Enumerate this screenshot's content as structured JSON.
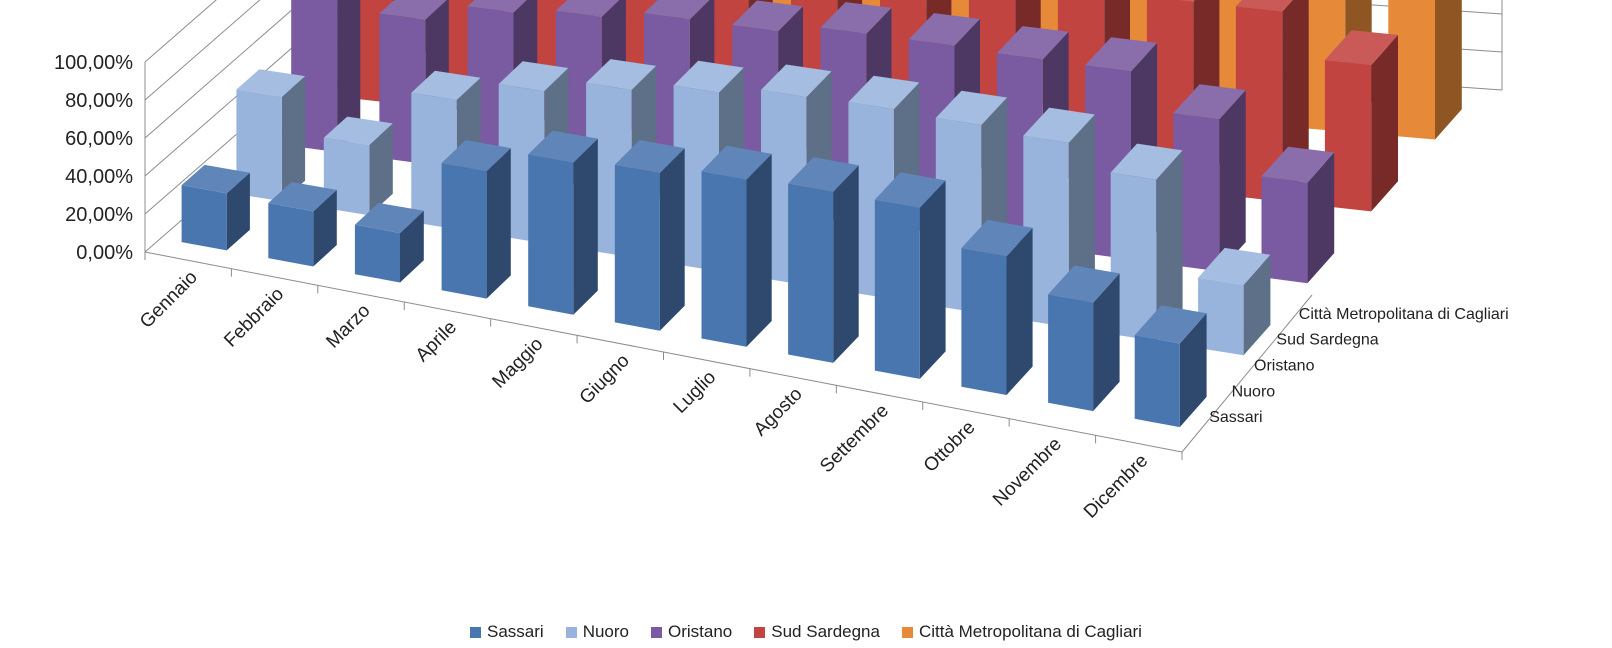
{
  "chart_data": {
    "type": "bar",
    "variant": "3d-column",
    "title": "",
    "categories": [
      "Gennaio",
      "Febbraio",
      "Marzo",
      "Aprile",
      "Maggio",
      "Giugno",
      "Luglio",
      "Agosto",
      "Settembre",
      "Ottobre",
      "Novembre",
      "Dicembre"
    ],
    "series": [
      {
        "name": "Sassari",
        "color": "#4a76b0",
        "values": [
          0.3,
          0.29,
          0.26,
          0.67,
          0.8,
          0.83,
          0.88,
          0.9,
          0.9,
          0.73,
          0.57,
          0.44
        ]
      },
      {
        "name": "Nuoro",
        "color": "#98b4dc",
        "values": [
          0.55,
          0.37,
          0.68,
          0.8,
          0.88,
          0.94,
          0.99,
          1.0,
          0.99,
          0.97,
          0.85,
          0.37
        ]
      },
      {
        "name": "Oristano",
        "color": "#7a5aa0",
        "values": [
          0.8,
          0.76,
          0.86,
          0.9,
          0.95,
          0.95,
          1.0,
          1.0,
          0.99,
          0.99,
          0.8,
          0.53
        ]
      },
      {
        "name": "Sud Sardegna",
        "color": "#c24440",
        "values": [
          0.92,
          0.9,
          0.88,
          0.98,
          0.99,
          0.99,
          0.99,
          0.99,
          0.99,
          1.0,
          1.0,
          0.77
        ]
      },
      {
        "name": "Città Metropolitana di Cagliari",
        "color": "#e68a3a",
        "values": [
          0.98,
          0.97,
          0.96,
          0.98,
          0.98,
          0.98,
          0.98,
          0.98,
          0.99,
          0.99,
          0.99,
          0.99
        ]
      }
    ],
    "yticks": [
      "0,00%",
      "20,00%",
      "40,00%",
      "60,00%",
      "80,00%",
      "100,00%"
    ],
    "ylim": [
      0,
      1
    ],
    "legend": "bottom",
    "grid": true
  }
}
